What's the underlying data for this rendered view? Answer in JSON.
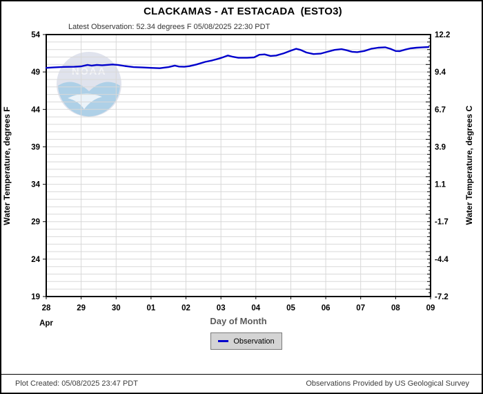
{
  "header": {
    "title": "CLACKAMAS - AT ESTACADA  (ESTO3)",
    "subtitle": "Latest Observation: 52.34 degrees F 05/08/2025 22:30 PDT"
  },
  "legend": {
    "items": [
      {
        "label": "Observation",
        "color": "#0000cc"
      }
    ]
  },
  "footer": {
    "left": "Plot Created: 05/08/2025 23:47 PDT",
    "right": "Observations Provided by US Geological Survey"
  },
  "watermark": {
    "text": "NOAA"
  },
  "colors": {
    "line": "#0000cc",
    "grid": "#d8d8d8",
    "axis": "#000000",
    "xlabel_text": "#5a5a5a",
    "subtitle_text": "#333333",
    "legend_bg": "#d4d4d4"
  },
  "chart_data": {
    "type": "line",
    "title": "CLACKAMAS - AT ESTACADA  (ESTO3)",
    "xlabel": "Day of Month",
    "x_month_label": "Apr",
    "ylabel_left": "Water Temperature, degrees F",
    "ylabel_right": "Water Temperature, degrees C",
    "x_tick_labels": [
      "28",
      "29",
      "30",
      "01",
      "02",
      "03",
      "04",
      "05",
      "06",
      "07",
      "08",
      "09"
    ],
    "x_range_days": [
      0,
      11
    ],
    "ylim_f": [
      19,
      54
    ],
    "y_left_ticks": [
      54,
      49,
      44,
      39,
      34,
      29,
      24,
      19
    ],
    "y_right_tick_labels": [
      "12.2",
      "9.4",
      "6.7",
      "3.9",
      "1.1",
      "-1.7",
      "-4.4",
      "-7.2"
    ],
    "grid": {
      "horizontal_minor_step_f": 1,
      "vertical_per_day": true
    },
    "legend_position": "bottom-center",
    "series": [
      {
        "name": "Observation",
        "color": "#0000cc",
        "points": [
          [
            0.0,
            49.55
          ],
          [
            0.2,
            49.6
          ],
          [
            0.5,
            49.68
          ],
          [
            0.8,
            49.7
          ],
          [
            1.0,
            49.75
          ],
          [
            1.18,
            49.95
          ],
          [
            1.3,
            49.85
          ],
          [
            1.45,
            49.95
          ],
          [
            1.6,
            49.9
          ],
          [
            1.9,
            50.0
          ],
          [
            2.05,
            49.95
          ],
          [
            2.25,
            49.8
          ],
          [
            2.5,
            49.65
          ],
          [
            2.75,
            49.6
          ],
          [
            3.0,
            49.55
          ],
          [
            3.25,
            49.5
          ],
          [
            3.5,
            49.65
          ],
          [
            3.68,
            49.85
          ],
          [
            3.8,
            49.72
          ],
          [
            3.95,
            49.7
          ],
          [
            4.1,
            49.78
          ],
          [
            4.3,
            50.0
          ],
          [
            4.55,
            50.35
          ],
          [
            4.75,
            50.55
          ],
          [
            4.95,
            50.8
          ],
          [
            5.08,
            51.0
          ],
          [
            5.2,
            51.2
          ],
          [
            5.32,
            51.05
          ],
          [
            5.5,
            50.9
          ],
          [
            5.75,
            50.9
          ],
          [
            5.95,
            50.95
          ],
          [
            6.1,
            51.3
          ],
          [
            6.25,
            51.35
          ],
          [
            6.42,
            51.15
          ],
          [
            6.58,
            51.2
          ],
          [
            6.8,
            51.5
          ],
          [
            7.0,
            51.85
          ],
          [
            7.15,
            52.1
          ],
          [
            7.28,
            51.95
          ],
          [
            7.45,
            51.6
          ],
          [
            7.65,
            51.4
          ],
          [
            7.85,
            51.45
          ],
          [
            8.05,
            51.7
          ],
          [
            8.25,
            51.95
          ],
          [
            8.45,
            52.05
          ],
          [
            8.6,
            51.9
          ],
          [
            8.75,
            51.7
          ],
          [
            8.9,
            51.65
          ],
          [
            9.1,
            51.8
          ],
          [
            9.3,
            52.1
          ],
          [
            9.5,
            52.25
          ],
          [
            9.7,
            52.3
          ],
          [
            9.85,
            52.1
          ],
          [
            10.0,
            51.8
          ],
          [
            10.12,
            51.78
          ],
          [
            10.28,
            52.0
          ],
          [
            10.42,
            52.15
          ],
          [
            10.6,
            52.25
          ],
          [
            10.78,
            52.3
          ],
          [
            10.94,
            52.34
          ]
        ]
      }
    ]
  }
}
